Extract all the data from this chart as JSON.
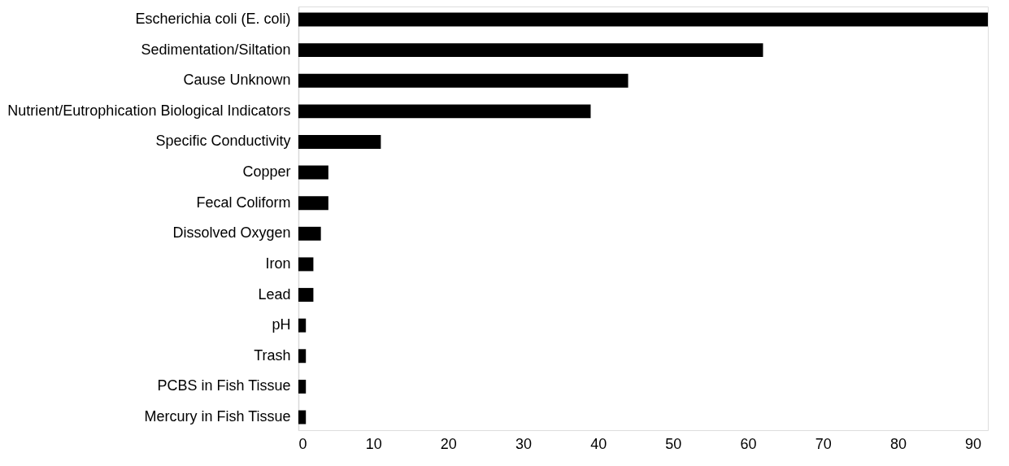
{
  "chart_data": {
    "type": "bar",
    "orientation": "horizontal",
    "categories": [
      "Escherichia coli (E. coli)",
      "Sedimentation/Siltation",
      "Cause Unknown",
      "Nutrient/Eutrophication Biological Indicators",
      "Specific Conductivity",
      "Copper",
      "Fecal Coliform",
      "Dissolved Oxygen",
      "Iron",
      "Lead",
      "pH",
      "Trash",
      "PCBS in Fish Tissue",
      "Mercury in Fish Tissue"
    ],
    "values": [
      92,
      62,
      44,
      39,
      11,
      4,
      4,
      3,
      2,
      2,
      1,
      1,
      1,
      1
    ],
    "color": "#000000",
    "xlim": [
      0,
      92
    ],
    "xticks": [
      0,
      10,
      20,
      30,
      40,
      50,
      60,
      70,
      80,
      90
    ],
    "grid": false
  }
}
